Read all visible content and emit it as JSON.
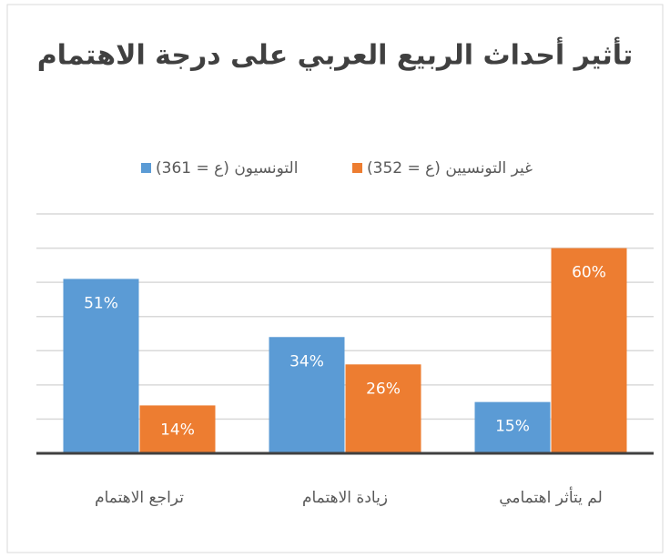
{
  "chart_data": {
    "type": "bar",
    "title": "تأثير أحداث الربيع العربي على درجة الاهتمام",
    "categories": [
      "تراجع الاهتمام",
      "زيادة الاهتمام",
      "لم يتأثر اهتمامي"
    ],
    "series": [
      {
        "name": "التونسيون (ع = 361)",
        "color": "#5b9bd5",
        "values": [
          51,
          34,
          15
        ],
        "value_labels": [
          "51%",
          "34%",
          "15%"
        ]
      },
      {
        "name": "غير التونسيين (ع = 352)",
        "color": "#ed7d31",
        "values": [
          14,
          26,
          60
        ],
        "value_labels": [
          "14%",
          "26%",
          "60%"
        ]
      }
    ],
    "ylim": [
      0,
      70
    ],
    "yticks": [
      0,
      10,
      20,
      30,
      40,
      50,
      60,
      70
    ],
    "grid": true
  }
}
